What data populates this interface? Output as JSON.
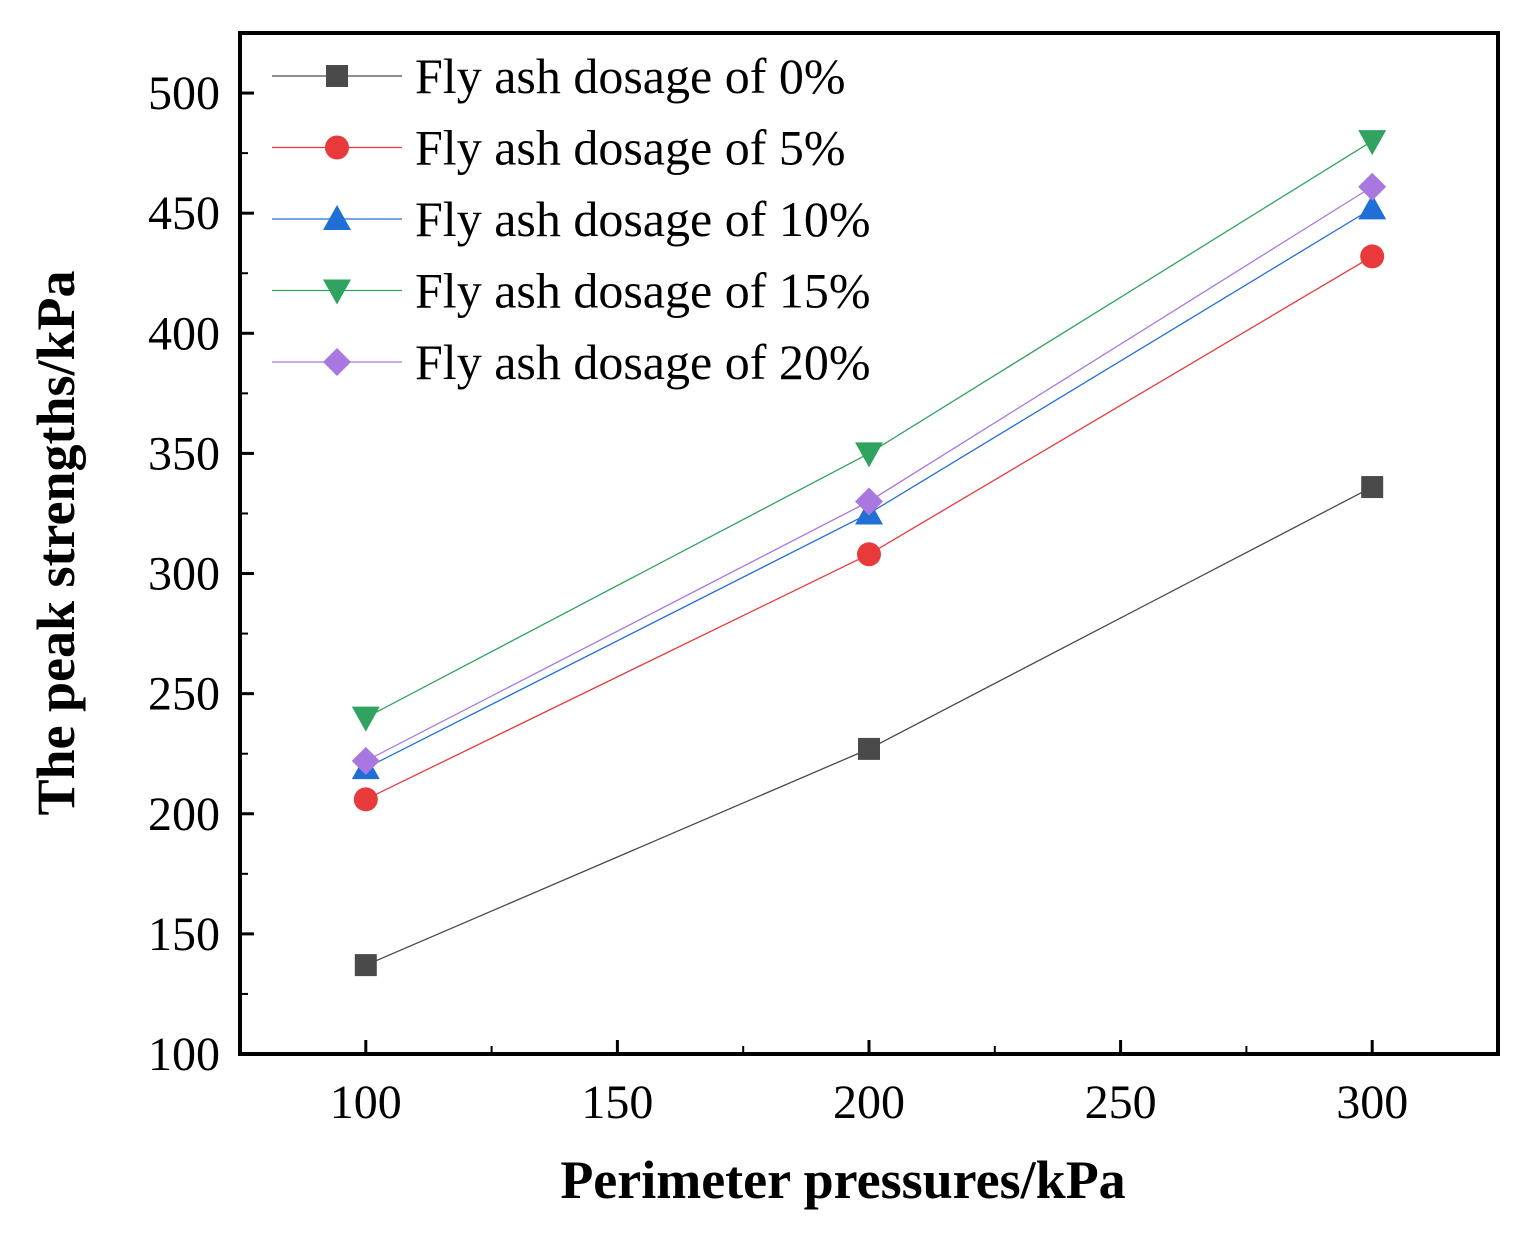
{
  "chart_data": {
    "type": "line",
    "title": "",
    "xlabel": "Perimeter pressures/kPa",
    "ylabel": "The peak strengths/kPa",
    "xlim": [
      75,
      325
    ],
    "ylim": [
      100,
      525
    ],
    "x": [
      100,
      200,
      300
    ],
    "xticks": [
      100,
      150,
      200,
      250,
      300
    ],
    "yticks": [
      100,
      150,
      200,
      250,
      300,
      350,
      400,
      450,
      500
    ],
    "legend_position": "top-left",
    "grid": false,
    "series": [
      {
        "name": "Fly ash dosage of 0%",
        "values": [
          137,
          227,
          336
        ],
        "color": "#4a4a4a",
        "marker": "square"
      },
      {
        "name": "Fly ash dosage of 5%",
        "values": [
          206,
          308,
          432
        ],
        "color": "#e8393b",
        "marker": "circle"
      },
      {
        "name": "Fly ash dosage of 10%",
        "values": [
          219,
          325,
          452
        ],
        "color": "#1f6fd6",
        "marker": "triangle-up"
      },
      {
        "name": "Fly ash dosage of 15%",
        "values": [
          240,
          350,
          480
        ],
        "color": "#2fa35f",
        "marker": "triangle-down"
      },
      {
        "name": "Fly ash dosage of 20%",
        "values": [
          222,
          330,
          461
        ],
        "color": "#a977e0",
        "marker": "diamond"
      }
    ]
  }
}
